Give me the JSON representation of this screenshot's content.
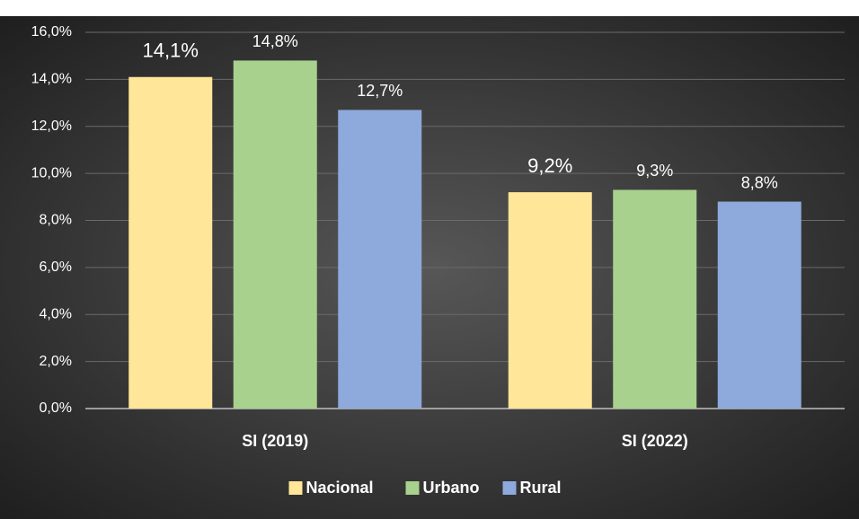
{
  "chart_data": {
    "type": "bar",
    "categories": [
      "SI (2019)",
      "SI (2022)"
    ],
    "series": [
      {
        "name": "Nacional",
        "color": "#FFE699",
        "values": [
          14.1,
          9.2
        ],
        "value_labels": [
          "14,1%",
          "9,2%"
        ]
      },
      {
        "name": "Urbano",
        "color": "#A9D18E",
        "values": [
          14.8,
          9.3
        ],
        "value_labels": [
          "14,8%",
          "9,3%"
        ]
      },
      {
        "name": "Rural",
        "color": "#8EA9DB",
        "values": [
          12.7,
          8.8
        ],
        "value_labels": [
          "12,7%",
          "8,8%"
        ]
      }
    ],
    "ylim": [
      0,
      16
    ],
    "yticks": [
      {
        "value": 0,
        "label": "0,0%"
      },
      {
        "value": 2,
        "label": "2,0%"
      },
      {
        "value": 4,
        "label": "4,0%"
      },
      {
        "value": 6,
        "label": "6,0%"
      },
      {
        "value": 8,
        "label": "8,0%"
      },
      {
        "value": 10,
        "label": "10,0%"
      },
      {
        "value": 12,
        "label": "12,0%"
      },
      {
        "value": 14,
        "label": "14,0%"
      },
      {
        "value": 16,
        "label": "16,0%"
      }
    ],
    "grid": true,
    "legend": "bottom"
  }
}
